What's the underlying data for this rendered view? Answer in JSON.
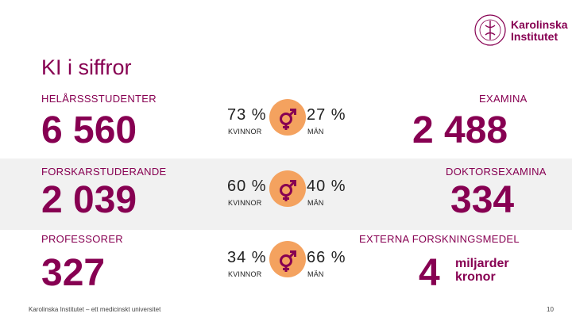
{
  "logo": {
    "line1": "Karolinska",
    "line2": "Institutet"
  },
  "title": "KI i siffror",
  "students": {
    "label": "HELÅRSSSTUDENTER",
    "value": "6 560",
    "women_pct": "73 %",
    "women_label": "KVINNOR",
    "men_pct": "27 %",
    "men_label": "MÄN"
  },
  "phd_students": {
    "label": "FORSKARSTUDERANDE",
    "value": "2 039",
    "women_pct": "60 %",
    "women_label": "KVINNOR",
    "men_pct": "40 %",
    "men_label": "MÄN"
  },
  "professors": {
    "label": "PROFESSORER",
    "value": "327",
    "women_pct": "34 %",
    "women_label": "KVINNOR",
    "men_pct": "66 %",
    "men_label": "MÄN"
  },
  "degrees": {
    "label": "EXAMINA",
    "value": "2 488"
  },
  "doctoral_degrees": {
    "label": "DOKTORSEXAMINA",
    "value": "334"
  },
  "funding": {
    "label": "EXTERNA FORSKNINGSMEDEL",
    "value": "4",
    "unit_line1": "miljarder",
    "unit_line2": "kronor"
  },
  "footer": {
    "text": "Karolinska Institutet – ett medicinskt universitet",
    "page": "10"
  },
  "colors": {
    "brand": "#870052",
    "gender_circle": "#f4a25f",
    "band": "#f1f1f1"
  },
  "icons": [
    "ki-seal-icon",
    "gender-symbol-icon"
  ]
}
